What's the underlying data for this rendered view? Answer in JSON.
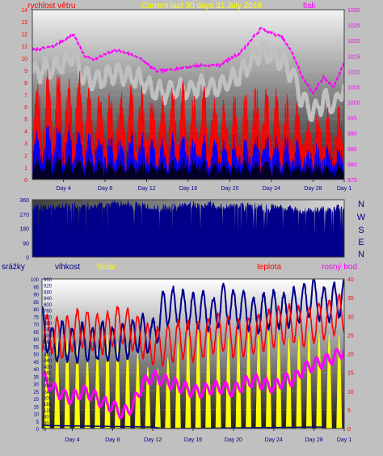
{
  "header": {
    "wind_speed_label": "rychlost větru",
    "title": "Current last 30 days 31 July 2019",
    "pressure_label": "tlak"
  },
  "wind_direction_panel": {
    "compass_letters": [
      "N",
      "W",
      "S",
      "E",
      "N"
    ]
  },
  "lower_header": {
    "rain_label": "srážky",
    "humidity_label": "vlhkost",
    "solar_label": "Solar",
    "temperature_label": "teplota",
    "dewpoint_label": "rosný bod"
  },
  "colors": {
    "background": "#c0c0c0",
    "wind_speed": "#ff0000",
    "wind_gust_dark": "#000000",
    "wind_avg": "#0000ff",
    "pressure": "#ff00ff",
    "pressure_band": "#c0c0c0",
    "wind_dir": "#00008b",
    "humidity": "#00008b",
    "solar": "#ffff00",
    "temperature": "#ff0000",
    "dewpoint": "#ff00ff",
    "rain": "#000080",
    "title": "#ffff00"
  },
  "chart_data": [
    {
      "type": "line",
      "title": "Current last 30 days 31 July 2019",
      "x_ticks": [
        "Day 4",
        "Day 8",
        "Day 12",
        "Day 16",
        "Day 20",
        "Day 24",
        "Day 28",
        "Day 1"
      ],
      "y_left": {
        "label": "rychlost větru",
        "ticks": [
          0,
          1,
          2,
          3,
          4,
          5,
          6,
          7,
          8,
          9,
          10,
          11,
          12,
          13,
          14
        ],
        "ylim": [
          0,
          14
        ]
      },
      "y_right": {
        "label": "tlak",
        "ticks": [
          975,
          980,
          985,
          990,
          995,
          1000,
          1005,
          1010,
          1015,
          1020,
          1025,
          1030
        ],
        "ylim": [
          975,
          1030
        ]
      },
      "series": [
        {
          "name": "tlak",
          "axis": "right",
          "x": [
            0,
            2,
            4,
            5,
            6,
            8,
            10,
            12,
            14,
            16,
            18,
            20,
            22,
            24,
            25,
            26,
            27,
            28,
            29,
            30
          ],
          "values": [
            1017,
            1018,
            1022,
            1015,
            1014,
            1017,
            1015,
            1010,
            1011,
            1012,
            1012,
            1016,
            1024,
            1021,
            1016,
            1008,
            1003,
            1008,
            1005,
            1013
          ]
        },
        {
          "name": "rychlost větru",
          "axis": "left",
          "x": [
            0,
            2,
            4,
            6,
            8,
            10,
            12,
            14,
            16,
            18,
            20,
            22,
            24,
            26,
            28,
            30
          ],
          "values": [
            5,
            6,
            6,
            5,
            4.5,
            5,
            4,
            5,
            5,
            4,
            4.5,
            5,
            4.5,
            3.5,
            3.5,
            4
          ]
        }
      ]
    },
    {
      "type": "area",
      "y_ticks": [
        0,
        90,
        180,
        270,
        360
      ],
      "ylim": [
        0,
        360
      ],
      "x": [
        0,
        3,
        6,
        9,
        12,
        15,
        18,
        21,
        24,
        27,
        30
      ],
      "values": [
        300,
        310,
        320,
        330,
        300,
        320,
        320,
        310,
        300,
        280,
        310
      ]
    },
    {
      "type": "line",
      "x_ticks": [
        "Day 4",
        "Day 8",
        "Day 12",
        "Day 16",
        "Day 20",
        "Day 24",
        "Day 28",
        "Day 1"
      ],
      "y_left_outer": {
        "label": "srážky",
        "ticks": [
          0,
          5,
          10,
          15,
          20,
          25,
          30,
          35,
          40,
          45,
          50,
          55,
          60,
          65,
          70,
          75,
          80,
          85,
          90,
          95,
          100
        ],
        "ylim": [
          0,
          100
        ]
      },
      "y_left_inner": {
        "label": "Solar",
        "ticks": [
          0,
          40,
          80,
          120,
          160,
          200,
          240,
          280,
          320,
          360,
          400,
          440,
          480,
          520,
          560,
          600,
          640,
          680,
          720,
          760,
          800,
          840,
          880,
          920,
          960
        ],
        "ylim": [
          0,
          960
        ]
      },
      "y_right": {
        "label": "teplota",
        "ticks": [
          0,
          5,
          10,
          15,
          20,
          25,
          30,
          35,
          40
        ],
        "ylim": [
          0,
          40
        ]
      },
      "series": [
        {
          "name": "vlhkost",
          "axis": "left_outer",
          "x": [
            0,
            1,
            2,
            3,
            4,
            5,
            6,
            7,
            8,
            9,
            10,
            11,
            12,
            13,
            14,
            15,
            16,
            17,
            18,
            19,
            20,
            21,
            22,
            23,
            24,
            25,
            26,
            27,
            28,
            29,
            30
          ],
          "values": [
            70,
            55,
            60,
            55,
            58,
            55,
            60,
            55,
            58,
            60,
            65,
            60,
            80,
            82,
            80,
            78,
            80,
            75,
            85,
            80,
            80,
            75,
            78,
            80,
            78,
            82,
            85,
            88,
            82,
            85,
            88
          ]
        },
        {
          "name": "teplota",
          "axis": "right",
          "x": [
            0,
            1,
            2,
            3,
            4,
            5,
            6,
            7,
            8,
            9,
            10,
            11,
            12,
            13,
            14,
            15,
            16,
            17,
            18,
            19,
            20,
            21,
            22,
            23,
            24,
            25,
            26,
            27,
            28,
            29,
            30
          ],
          "values": [
            26,
            25,
            24,
            26,
            27,
            26,
            25,
            27,
            28,
            26,
            24,
            22,
            22,
            23,
            24,
            23,
            24,
            25,
            26,
            24,
            24,
            25,
            26,
            27,
            28,
            28,
            27,
            28,
            29,
            30,
            31
          ]
        },
        {
          "name": "rosný bod",
          "axis": "right",
          "x": [
            0,
            1,
            2,
            3,
            4,
            5,
            6,
            7,
            8,
            9,
            10,
            11,
            12,
            13,
            14,
            15,
            16,
            17,
            18,
            19,
            20,
            21,
            22,
            23,
            24,
            25,
            26,
            27,
            28,
            29,
            30
          ],
          "values": [
            14,
            11,
            9,
            8,
            10,
            9,
            7,
            6,
            4,
            6,
            12,
            14,
            13,
            12,
            11,
            10,
            10,
            11,
            11,
            10,
            12,
            13,
            12,
            11,
            13,
            13,
            16,
            17,
            18,
            19,
            21
          ]
        },
        {
          "name": "Solar",
          "axis": "left_inner",
          "x": [
            0,
            1,
            2,
            3,
            4,
            5,
            6,
            7,
            8,
            9,
            10,
            11,
            12,
            13,
            14,
            15,
            16,
            17,
            18,
            19,
            20,
            21,
            22,
            23,
            24,
            25,
            26,
            27,
            28,
            29,
            30
          ],
          "values": [
            560,
            620,
            560,
            620,
            480,
            440,
            600,
            620,
            500,
            560,
            420,
            380,
            400,
            520,
            600,
            620,
            640,
            620,
            600,
            580,
            640,
            600,
            620,
            640,
            600,
            580,
            620,
            640,
            600,
            620,
            600
          ]
        },
        {
          "name": "srážky",
          "axis": "left_outer",
          "x": [
            0,
            11,
            12,
            13,
            28
          ],
          "values": [
            2,
            1,
            0,
            0,
            1
          ]
        }
      ]
    }
  ]
}
